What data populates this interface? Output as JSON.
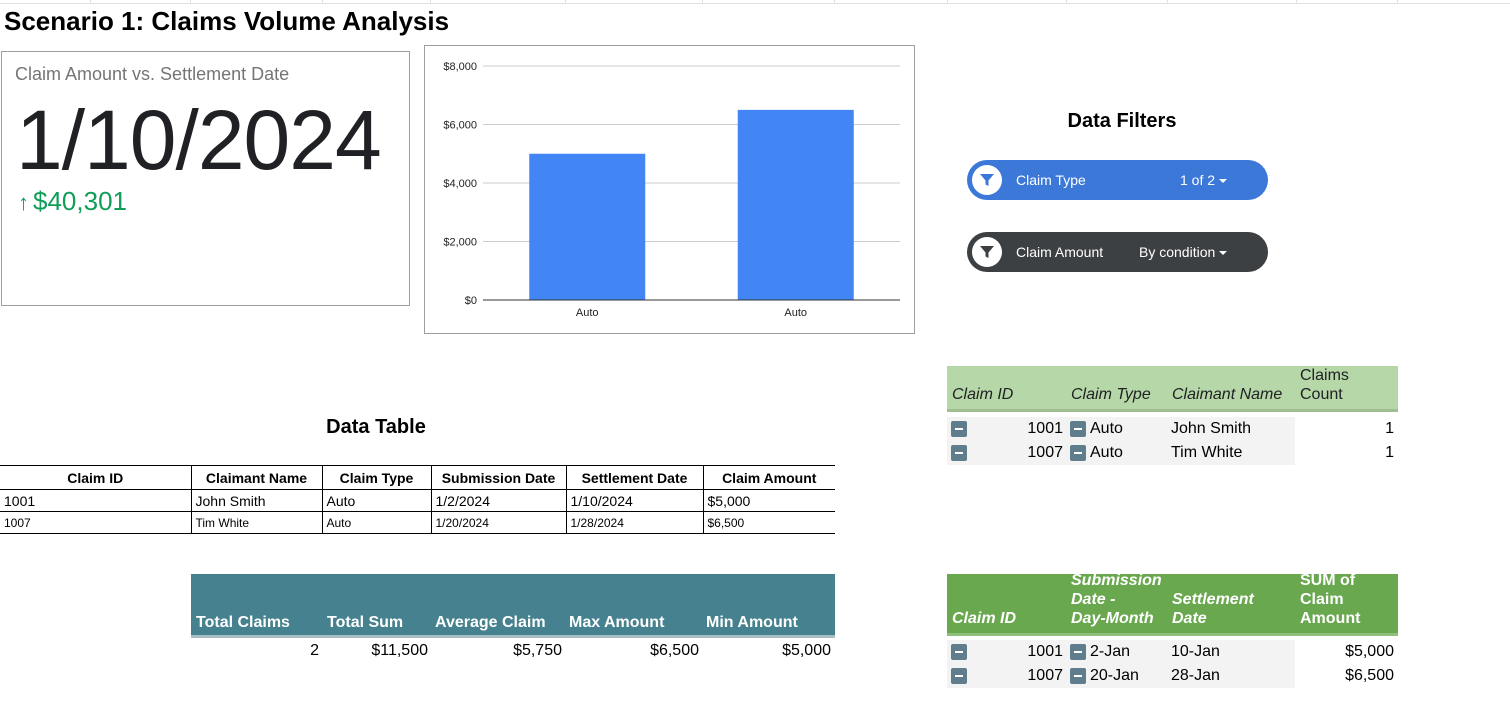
{
  "sheet_title": "Scenario 1: Claims Volume Analysis",
  "scorecard": {
    "label": "Claim Amount vs. Settlement Date",
    "value": "1/10/2024",
    "delta_arrow": "↑",
    "delta": "$40,301",
    "delta_color": "#0f9d58"
  },
  "chart_data": {
    "type": "bar",
    "categories": [
      "Auto",
      "Auto"
    ],
    "values": [
      5000,
      6500
    ],
    "y_ticks": [
      "$8,000",
      "$6,000",
      "$4,000",
      "$2,000",
      "$0"
    ],
    "ylim": [
      0,
      8000
    ],
    "grid": true,
    "bar_color": "#4285f4"
  },
  "filters": {
    "title": "Data Filters",
    "items": [
      {
        "label": "Claim Type",
        "value": "1 of 2"
      },
      {
        "label": "Claim Amount",
        "value": "By condition"
      }
    ]
  },
  "data_table": {
    "title": "Data Table",
    "headers": [
      "Claim ID",
      "Claimant Name",
      "Claim Type",
      "Submission Date",
      "Settlement Date",
      "Claim Amount"
    ],
    "rows": [
      [
        "1001",
        "John Smith",
        "Auto",
        "1/2/2024",
        "1/10/2024",
        "$5,000"
      ],
      [
        "1007",
        "Tim White",
        "Auto",
        "1/20/2024",
        "1/28/2024",
        "$6,500"
      ]
    ]
  },
  "summary": {
    "headers": [
      "Total Claims",
      "Total Sum",
      "Average Claim",
      "Max Amount",
      "Min Amount"
    ],
    "values": [
      "2",
      "$11,500",
      "$5,750",
      "$6,500",
      "$5,000"
    ]
  },
  "pivot1": {
    "headers": [
      "Claim ID",
      "Claim Type",
      "Claimant Name",
      "Claims",
      "Count"
    ],
    "rows": [
      {
        "id": "1001",
        "type": "Auto",
        "name": "John Smith",
        "count": "1"
      },
      {
        "id": "1007",
        "type": "Auto",
        "name": "Tim White",
        "count": "1"
      }
    ]
  },
  "pivot2": {
    "headers": {
      "claim_id": "Claim ID",
      "submission_1": "Submission",
      "submission_2": "Date -",
      "submission_3": "Day-Month",
      "settlement_1": "Settlement",
      "settlement_2": "Date",
      "sum_1": "SUM of",
      "sum_2": "Claim",
      "sum_3": "Amount"
    },
    "rows": [
      {
        "id": "1001",
        "submission": "2-Jan",
        "settlement": "10-Jan",
        "sum": "$5,000"
      },
      {
        "id": "1007",
        "submission": "20-Jan",
        "settlement": "28-Jan",
        "sum": "$6,500"
      }
    ]
  }
}
